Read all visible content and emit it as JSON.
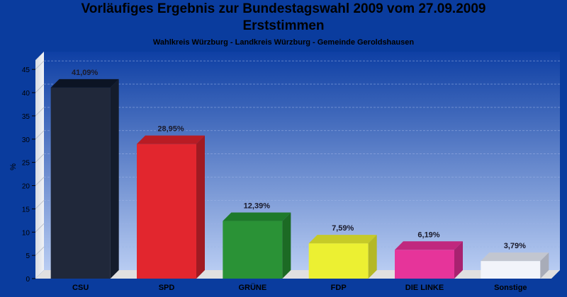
{
  "chart_data": {
    "type": "bar",
    "title": "Vorläufiges Ergebnis zur Bundestagswahl 2009 vom 27.09.2009",
    "title2": "Erststimmen",
    "subtitle": "Wahlkreis Würzburg - Landkreis Würzburg - Gemeinde Geroldshausen",
    "xlabel": "",
    "ylabel": "%",
    "ylim": [
      0,
      47
    ],
    "yticks": [
      0,
      5,
      10,
      15,
      20,
      25,
      30,
      35,
      40,
      45
    ],
    "grid": true,
    "categories": [
      "CSU",
      "SPD",
      "GRÜNE",
      "FDP",
      "DIE LINKE",
      "Sonstige"
    ],
    "values": [
      41.09,
      28.95,
      12.39,
      7.59,
      6.19,
      3.79
    ],
    "value_labels": [
      "41,09%",
      "28,95%",
      "12,39%",
      "7,59%",
      "6,19%",
      "3,79%"
    ],
    "colors": [
      {
        "front": "#20283a",
        "top": "#0c1424",
        "side": "#141c2c"
      },
      {
        "front": "#e2262e",
        "top": "#b81c24",
        "side": "#a01a22"
      },
      {
        "front": "#2a9236",
        "top": "#1e7a2a",
        "side": "#1c6a24"
      },
      {
        "front": "#ecf032",
        "top": "#c6ca28",
        "side": "#b4b824"
      },
      {
        "front": "#e6349a",
        "top": "#c0287e",
        "side": "#a82270"
      },
      {
        "front": "#f2f4fa",
        "top": "#c2c6d0",
        "side": "#a8acb8"
      }
    ],
    "background": {
      "page": "#0a3c9e",
      "plot_top": "#0e3fa4",
      "plot_bottom": "#b8ccf2",
      "floor": "#e0e0e0"
    }
  }
}
